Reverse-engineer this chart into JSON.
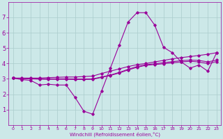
{
  "xlabel": "Windchill (Refroidissement éolien,°C)",
  "x_values": [
    0,
    1,
    2,
    3,
    4,
    5,
    6,
    7,
    8,
    9,
    10,
    11,
    12,
    13,
    14,
    15,
    16,
    17,
    18,
    19,
    20,
    21,
    22,
    23
  ],
  "line1_y": [
    3.05,
    2.95,
    2.9,
    2.6,
    2.65,
    2.6,
    2.6,
    1.8,
    0.9,
    0.7,
    2.2,
    3.7,
    5.2,
    6.7,
    7.3,
    7.3,
    6.5,
    5.05,
    4.7,
    4.1,
    3.7,
    3.9,
    3.5,
    4.7
  ],
  "line2_y": [
    3.05,
    3.05,
    3.05,
    3.05,
    3.08,
    3.1,
    3.12,
    3.12,
    3.15,
    3.18,
    3.35,
    3.5,
    3.65,
    3.8,
    3.92,
    4.0,
    4.1,
    4.2,
    4.3,
    4.38,
    4.45,
    4.52,
    4.6,
    4.7
  ],
  "line3_y": [
    3.05,
    3.02,
    3.0,
    2.98,
    2.97,
    2.97,
    2.97,
    2.96,
    2.96,
    2.97,
    3.1,
    3.22,
    3.38,
    3.58,
    3.75,
    3.88,
    3.93,
    3.98,
    4.05,
    4.1,
    4.14,
    4.1,
    4.0,
    4.12
  ],
  "line4_y": [
    3.05,
    3.03,
    3.02,
    3.0,
    3.0,
    3.0,
    3.0,
    2.99,
    2.99,
    3.0,
    3.12,
    3.25,
    3.42,
    3.62,
    3.8,
    3.92,
    3.98,
    4.05,
    4.12,
    4.18,
    4.22,
    4.2,
    4.1,
    4.22
  ],
  "line_color": "#990099",
  "bg_color": "#cce8e8",
  "grid_color": "#aacccc",
  "ylim": [
    0,
    8
  ],
  "xlim": [
    -0.5,
    23.5
  ],
  "yticks": [
    1,
    2,
    3,
    4,
    5,
    6,
    7
  ],
  "xticks": [
    0,
    1,
    2,
    3,
    4,
    5,
    6,
    7,
    8,
    9,
    10,
    11,
    12,
    13,
    14,
    15,
    16,
    17,
    18,
    19,
    20,
    21,
    22,
    23
  ]
}
